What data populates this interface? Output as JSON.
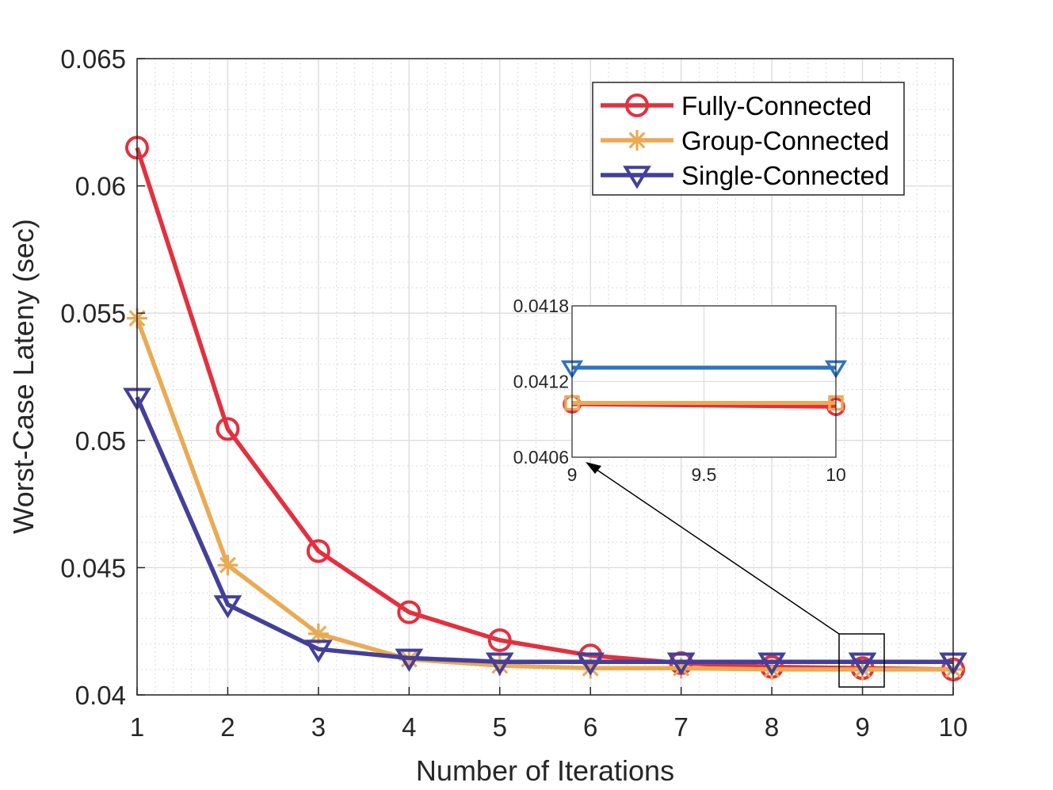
{
  "colors": {
    "fully": "#e3303f",
    "group": "#eaaa54",
    "single": "#443f9a",
    "inset_single": "#2f72c2"
  },
  "chart_data": {
    "type": "line",
    "title": "",
    "xlabel": "Number of Iterations",
    "ylabel": "Worst-Case Lateny (sec)",
    "xlim": [
      1,
      10
    ],
    "ylim": [
      0.04,
      0.065
    ],
    "xticks": [
      "1",
      "2",
      "3",
      "4",
      "5",
      "6",
      "7",
      "8",
      "9",
      "10"
    ],
    "yticks": [
      "0.04",
      "0.045",
      "0.05",
      "0.055",
      "0.06",
      "0.065"
    ],
    "grid": true,
    "minor_grid": true,
    "legend_position": "top-right",
    "x": [
      1,
      2,
      3,
      4,
      5,
      6,
      7,
      8,
      9,
      10
    ],
    "series": [
      {
        "name": "Fully-Connected",
        "marker": "circle",
        "color_key": "fully",
        "values": [
          0.0615,
          0.05045,
          0.04565,
          0.04325,
          0.04215,
          0.04155,
          0.04125,
          0.0411,
          0.04105,
          0.041
        ]
      },
      {
        "name": "Group-Connected",
        "marker": "asterisk",
        "color_key": "group",
        "values": [
          0.0548,
          0.0451,
          0.0424,
          0.0414,
          0.04115,
          0.04105,
          0.04105,
          0.041,
          0.041,
          0.041
        ]
      },
      {
        "name": "Single-Connected",
        "marker": "triangle-down",
        "color_key": "single",
        "values": [
          0.0517,
          0.04355,
          0.0418,
          0.04145,
          0.0413,
          0.0413,
          0.0413,
          0.0413,
          0.0413,
          0.0413
        ]
      }
    ],
    "inset": {
      "xlim": [
        9,
        10
      ],
      "ylim": [
        0.0406,
        0.0418
      ],
      "xticks": [
        "9",
        "9.5",
        "10"
      ],
      "yticks": [
        "0.0406",
        "0.0412",
        "0.0418"
      ],
      "x": [
        9,
        10
      ],
      "series": [
        {
          "name": "Fully-Connected",
          "marker": "circle",
          "color_key": "fully",
          "values": [
            0.04102,
            0.041
          ]
        },
        {
          "name": "Group-Connected",
          "marker": "square",
          "color_key": "group",
          "values": [
            0.04103,
            0.04103
          ]
        },
        {
          "name": "Single-Connected",
          "marker": "triangle-down",
          "color_key": "inset_single",
          "values": [
            0.04131,
            0.04131
          ]
        }
      ]
    }
  }
}
